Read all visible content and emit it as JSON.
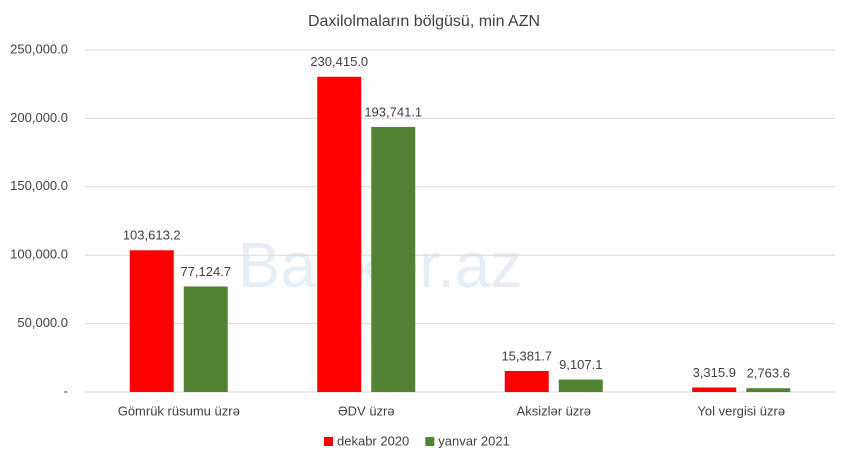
{
  "chart_data": {
    "type": "bar",
    "title": "Daxilolmaların bölgüsü, min AZN",
    "categories": [
      "Gömrük rüsumu üzrə",
      "ƏDV üzrə",
      "Aksizlər üzrə",
      "Yol vergisi üzrə"
    ],
    "series": [
      {
        "name": "dekabr 2020",
        "color": "#ff0000",
        "values": [
          103613.2,
          230415.0,
          15381.7,
          3315.9
        ],
        "value_labels": [
          "103,613.2",
          "230,415.0",
          "15,381.7",
          "3,315.9"
        ]
      },
      {
        "name": "yanvar 2021",
        "color": "#548235",
        "values": [
          77124.7,
          193741.1,
          9107.1,
          2763.6
        ],
        "value_labels": [
          "77,124.7",
          "193,741.1",
          "9,107.1",
          "2,763.6"
        ]
      }
    ],
    "ylim": [
      0,
      250000
    ],
    "yticks": [
      {
        "value": 0,
        "label": "-"
      },
      {
        "value": 50000,
        "label": "50,000.0"
      },
      {
        "value": 100000,
        "label": "100,000.0"
      },
      {
        "value": 150000,
        "label": "150,000.0"
      },
      {
        "value": 200000,
        "label": "200,000.0"
      },
      {
        "value": 250000,
        "label": "250,000.0"
      }
    ],
    "grid": true,
    "legend": "bottom",
    "watermark": "Banker.az"
  }
}
